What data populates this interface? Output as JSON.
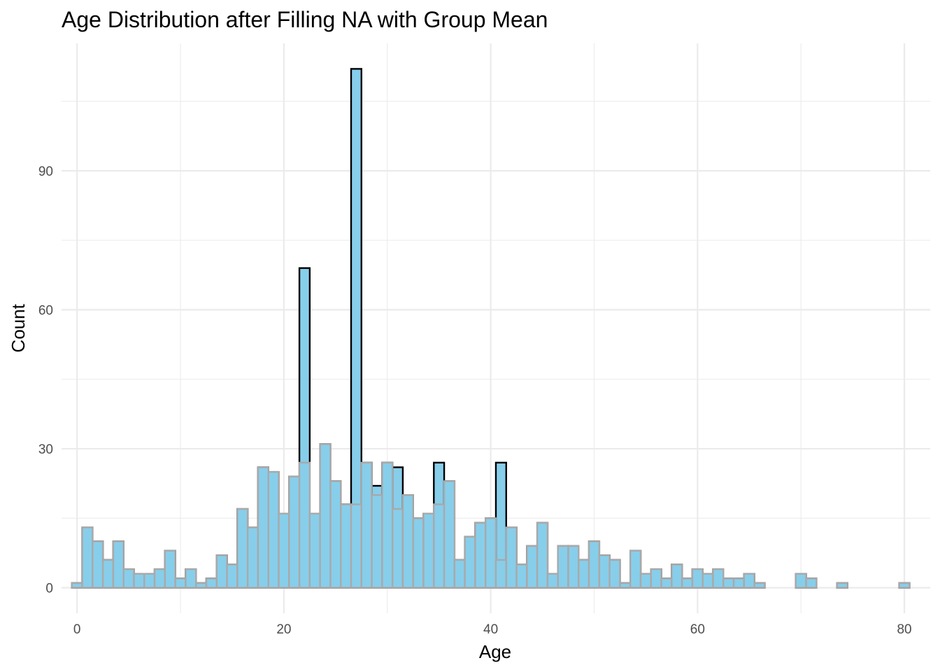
{
  "chart_data": {
    "type": "bar",
    "title": "Age Distribution after Filling NA with Group Mean",
    "xlabel": "Age",
    "ylabel": "Count",
    "xlim": [
      -1.5,
      82.5
    ],
    "ylim": [
      -5.5,
      117.5
    ],
    "x_ticks": [
      0,
      20,
      40,
      60,
      80
    ],
    "y_ticks": [
      0,
      30,
      60,
      90
    ],
    "x_minor": [
      10,
      30,
      50,
      70
    ],
    "y_minor": [
      15,
      45,
      75,
      105
    ],
    "bin_width": 1,
    "grid": true,
    "fill_color": "#87CEEB",
    "series": [
      {
        "outline_color": "#000000",
        "bins": [
          {
            "x": 0,
            "count": 1
          },
          {
            "x": 1,
            "count": 13
          },
          {
            "x": 2,
            "count": 10
          },
          {
            "x": 3,
            "count": 6
          },
          {
            "x": 4,
            "count": 10
          },
          {
            "x": 5,
            "count": 4
          },
          {
            "x": 6,
            "count": 3
          },
          {
            "x": 7,
            "count": 3
          },
          {
            "x": 8,
            "count": 4
          },
          {
            "x": 9,
            "count": 8
          },
          {
            "x": 10,
            "count": 2
          },
          {
            "x": 11,
            "count": 4
          },
          {
            "x": 12,
            "count": 1
          },
          {
            "x": 13,
            "count": 2
          },
          {
            "x": 14,
            "count": 7
          },
          {
            "x": 15,
            "count": 5
          },
          {
            "x": 16,
            "count": 17
          },
          {
            "x": 17,
            "count": 13
          },
          {
            "x": 18,
            "count": 26
          },
          {
            "x": 19,
            "count": 25
          },
          {
            "x": 20,
            "count": 16
          },
          {
            "x": 21,
            "count": 24
          },
          {
            "x": 22,
            "count": 69
          },
          {
            "x": 23,
            "count": 16
          },
          {
            "x": 24,
            "count": 31
          },
          {
            "x": 25,
            "count": 23
          },
          {
            "x": 26,
            "count": 18
          },
          {
            "x": 27,
            "count": 112
          },
          {
            "x": 28,
            "count": 27
          },
          {
            "x": 29,
            "count": 22
          },
          {
            "x": 30,
            "count": 27
          },
          {
            "x": 31,
            "count": 26
          },
          {
            "x": 32,
            "count": 20
          },
          {
            "x": 33,
            "count": 15
          },
          {
            "x": 34,
            "count": 16
          },
          {
            "x": 35,
            "count": 27
          },
          {
            "x": 36,
            "count": 23
          },
          {
            "x": 37,
            "count": 6
          },
          {
            "x": 38,
            "count": 11
          },
          {
            "x": 39,
            "count": 14
          },
          {
            "x": 40,
            "count": 15
          },
          {
            "x": 41,
            "count": 27
          },
          {
            "x": 42,
            "count": 13
          },
          {
            "x": 43,
            "count": 5
          },
          {
            "x": 44,
            "count": 9
          },
          {
            "x": 45,
            "count": 14
          },
          {
            "x": 46,
            "count": 3
          },
          {
            "x": 47,
            "count": 9
          },
          {
            "x": 48,
            "count": 9
          },
          {
            "x": 49,
            "count": 6
          },
          {
            "x": 50,
            "count": 10
          },
          {
            "x": 51,
            "count": 7
          },
          {
            "x": 52,
            "count": 6
          },
          {
            "x": 53,
            "count": 1
          },
          {
            "x": 54,
            "count": 8
          },
          {
            "x": 55,
            "count": 3
          },
          {
            "x": 56,
            "count": 4
          },
          {
            "x": 57,
            "count": 2
          },
          {
            "x": 58,
            "count": 5
          },
          {
            "x": 59,
            "count": 2
          },
          {
            "x": 60,
            "count": 4
          },
          {
            "x": 61,
            "count": 3
          },
          {
            "x": 62,
            "count": 4
          },
          {
            "x": 63,
            "count": 2
          },
          {
            "x": 64,
            "count": 2
          },
          {
            "x": 65,
            "count": 3
          },
          {
            "x": 66,
            "count": 1
          },
          {
            "x": 67,
            "count": 0
          },
          {
            "x": 68,
            "count": 0
          },
          {
            "x": 69,
            "count": 0
          },
          {
            "x": 70,
            "count": 3
          },
          {
            "x": 71,
            "count": 2
          },
          {
            "x": 72,
            "count": 0
          },
          {
            "x": 73,
            "count": 0
          },
          {
            "x": 74,
            "count": 1
          },
          {
            "x": 75,
            "count": 0
          },
          {
            "x": 76,
            "count": 0
          },
          {
            "x": 77,
            "count": 0
          },
          {
            "x": 78,
            "count": 0
          },
          {
            "x": 79,
            "count": 0
          },
          {
            "x": 80,
            "count": 1
          }
        ]
      },
      {
        "outline_color": "#A9A9A9",
        "bins": [
          {
            "x": 0,
            "count": 1
          },
          {
            "x": 1,
            "count": 13
          },
          {
            "x": 2,
            "count": 10
          },
          {
            "x": 3,
            "count": 6
          },
          {
            "x": 4,
            "count": 10
          },
          {
            "x": 5,
            "count": 4
          },
          {
            "x": 6,
            "count": 3
          },
          {
            "x": 7,
            "count": 3
          },
          {
            "x": 8,
            "count": 4
          },
          {
            "x": 9,
            "count": 8
          },
          {
            "x": 10,
            "count": 2
          },
          {
            "x": 11,
            "count": 4
          },
          {
            "x": 12,
            "count": 1
          },
          {
            "x": 13,
            "count": 2
          },
          {
            "x": 14,
            "count": 7
          },
          {
            "x": 15,
            "count": 5
          },
          {
            "x": 16,
            "count": 17
          },
          {
            "x": 17,
            "count": 13
          },
          {
            "x": 18,
            "count": 26
          },
          {
            "x": 19,
            "count": 25
          },
          {
            "x": 20,
            "count": 16
          },
          {
            "x": 21,
            "count": 24
          },
          {
            "x": 22,
            "count": 27
          },
          {
            "x": 23,
            "count": 16
          },
          {
            "x": 24,
            "count": 31
          },
          {
            "x": 25,
            "count": 23
          },
          {
            "x": 26,
            "count": 18
          },
          {
            "x": 27,
            "count": 18
          },
          {
            "x": 28,
            "count": 27
          },
          {
            "x": 29,
            "count": 20
          },
          {
            "x": 30,
            "count": 27
          },
          {
            "x": 31,
            "count": 17
          },
          {
            "x": 32,
            "count": 20
          },
          {
            "x": 33,
            "count": 15
          },
          {
            "x": 34,
            "count": 16
          },
          {
            "x": 35,
            "count": 18
          },
          {
            "x": 36,
            "count": 23
          },
          {
            "x": 37,
            "count": 6
          },
          {
            "x": 38,
            "count": 11
          },
          {
            "x": 39,
            "count": 14
          },
          {
            "x": 40,
            "count": 15
          },
          {
            "x": 41,
            "count": 6
          },
          {
            "x": 42,
            "count": 13
          },
          {
            "x": 43,
            "count": 5
          },
          {
            "x": 44,
            "count": 9
          },
          {
            "x": 45,
            "count": 14
          },
          {
            "x": 46,
            "count": 3
          },
          {
            "x": 47,
            "count": 9
          },
          {
            "x": 48,
            "count": 9
          },
          {
            "x": 49,
            "count": 6
          },
          {
            "x": 50,
            "count": 10
          },
          {
            "x": 51,
            "count": 7
          },
          {
            "x": 52,
            "count": 6
          },
          {
            "x": 53,
            "count": 1
          },
          {
            "x": 54,
            "count": 8
          },
          {
            "x": 55,
            "count": 3
          },
          {
            "x": 56,
            "count": 4
          },
          {
            "x": 57,
            "count": 2
          },
          {
            "x": 58,
            "count": 5
          },
          {
            "x": 59,
            "count": 2
          },
          {
            "x": 60,
            "count": 4
          },
          {
            "x": 61,
            "count": 3
          },
          {
            "x": 62,
            "count": 4
          },
          {
            "x": 63,
            "count": 2
          },
          {
            "x": 64,
            "count": 2
          },
          {
            "x": 65,
            "count": 3
          },
          {
            "x": 66,
            "count": 1
          },
          {
            "x": 67,
            "count": 0
          },
          {
            "x": 68,
            "count": 0
          },
          {
            "x": 69,
            "count": 0
          },
          {
            "x": 70,
            "count": 3
          },
          {
            "x": 71,
            "count": 2
          },
          {
            "x": 72,
            "count": 0
          },
          {
            "x": 73,
            "count": 0
          },
          {
            "x": 74,
            "count": 1
          },
          {
            "x": 75,
            "count": 0
          },
          {
            "x": 76,
            "count": 0
          },
          {
            "x": 77,
            "count": 0
          },
          {
            "x": 78,
            "count": 0
          },
          {
            "x": 79,
            "count": 0
          },
          {
            "x": 80,
            "count": 1
          }
        ]
      }
    ]
  }
}
